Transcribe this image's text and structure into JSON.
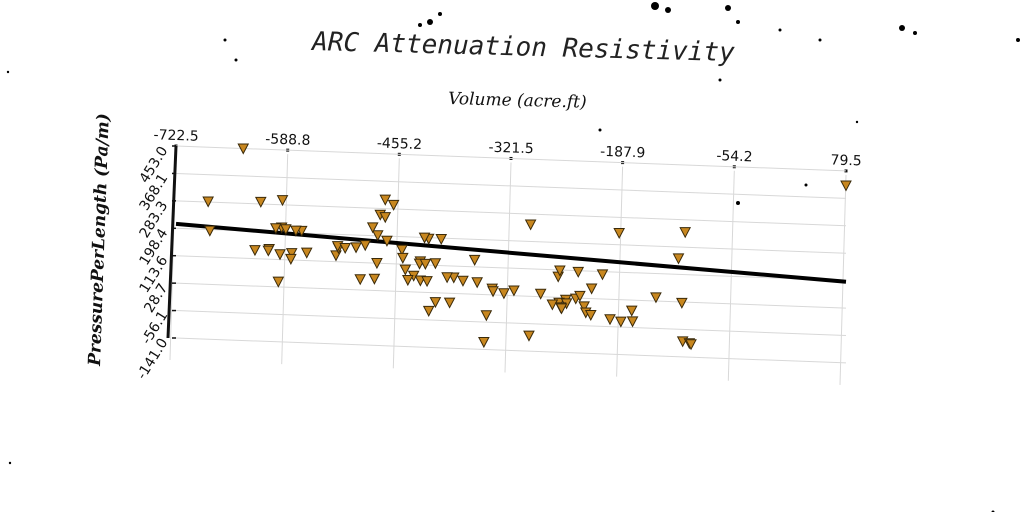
{
  "chart_data": {
    "type": "scatter",
    "title": "ARC Attenuation Resistivity",
    "xlabel": "Volume (acre.ft)",
    "ylabel": "PressurePerLength (Pa/m)",
    "x_ticks": [
      "-722.5",
      "-588.8",
      "-455.2",
      "-321.5",
      "-187.9",
      "-54.2",
      "79.5"
    ],
    "y_ticks": [
      "453.0",
      "368.1",
      "283.3",
      "198.4",
      "113.6",
      "28.7",
      "-56.1",
      "-141.0"
    ],
    "xlim": [
      -722.5,
      79.5
    ],
    "ylim": [
      -141.0,
      453.0
    ],
    "grid": true,
    "marker": "triangle-down",
    "marker_color": "#c8871f",
    "trend_line": {
      "x": [
        -722.5,
        79.5
      ],
      "y": [
        212,
        110
      ]
    },
    "points": [
      [
        -642,
        453
      ],
      [
        -684,
        285
      ],
      [
        -682,
        195
      ],
      [
        -595,
        298
      ],
      [
        -621,
        290
      ],
      [
        -596,
        213
      ],
      [
        -603,
        210
      ],
      [
        -591,
        208
      ],
      [
        -572,
        205
      ],
      [
        -579,
        205
      ],
      [
        -611,
        145
      ],
      [
        -598,
        130
      ],
      [
        -584,
        135
      ],
      [
        -566,
        138
      ],
      [
        -531,
        133
      ],
      [
        -528,
        156
      ],
      [
        -529,
        162
      ],
      [
        -507,
        160
      ],
      [
        -496,
        168
      ],
      [
        -481,
        200
      ],
      [
        -470,
        184
      ],
      [
        -487,
        224
      ],
      [
        -478,
        264
      ],
      [
        -472,
        257
      ],
      [
        -462,
        296
      ],
      [
        -472,
        311
      ],
      [
        -452,
        158
      ],
      [
        -451,
        133
      ],
      [
        -430,
        124
      ],
      [
        -420,
        195
      ],
      [
        -425,
        198
      ],
      [
        -405,
        196
      ],
      [
        -412,
        120
      ],
      [
        -431,
        117
      ],
      [
        -424,
        117
      ],
      [
        -448,
        97
      ],
      [
        -438,
        79
      ],
      [
        -430,
        65
      ],
      [
        -445,
        65
      ],
      [
        -422,
        64
      ],
      [
        -485,
        65
      ],
      [
        -502,
        62
      ],
      [
        -482,
        114
      ],
      [
        -390,
        78
      ],
      [
        -398,
        78
      ],
      [
        -379,
        69
      ],
      [
        -362,
        66
      ],
      [
        -344,
        48
      ],
      [
        -343,
        40
      ],
      [
        -318,
        45
      ],
      [
        -365,
        135
      ],
      [
        -395,
        0
      ],
      [
        -412,
        0
      ],
      [
        -420,
        -28
      ],
      [
        -351,
        -35
      ],
      [
        -330,
        35
      ],
      [
        -286,
        38
      ],
      [
        -244,
        27
      ],
      [
        -256,
        22
      ],
      [
        -264,
        12
      ],
      [
        -255,
        11
      ],
      [
        -272,
        6
      ],
      [
        -262,
        -2
      ],
      [
        -261,
        -5
      ],
      [
        -234,
        4
      ],
      [
        -232,
        -15
      ],
      [
        -225,
        60
      ],
      [
        -239,
        36
      ],
      [
        -226,
        -22
      ],
      [
        -203,
        -33
      ],
      [
        -190,
        -39
      ],
      [
        -176,
        -37
      ],
      [
        -177,
        -4
      ],
      [
        -212,
        105
      ],
      [
        -241,
        110
      ],
      [
        -265,
        93
      ],
      [
        -263,
        112
      ],
      [
        -298,
        251
      ],
      [
        -300,
        -93
      ],
      [
        -354,
        -118
      ],
      [
        -192,
        235
      ],
      [
        -148,
        40
      ],
      [
        -117,
        26
      ],
      [
        -121,
        163
      ],
      [
        -113,
        245
      ],
      [
        -116,
        -93
      ],
      [
        -108,
        -98
      ],
      [
        -106,
        -101
      ],
      [
        -600,
        45
      ],
      [
        -628,
        140
      ],
      [
        -612,
        140
      ],
      [
        -520,
        157
      ],
      [
        -585,
        117
      ],
      [
        79.5,
        408
      ]
    ]
  }
}
